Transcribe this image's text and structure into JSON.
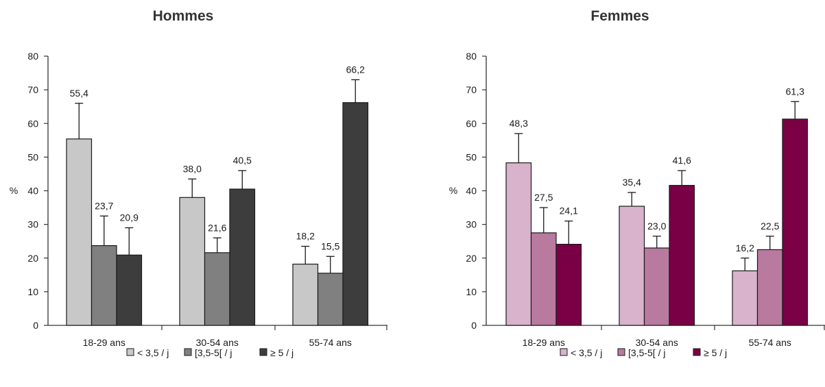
{
  "chart_data": [
    {
      "type": "bar",
      "title": "Hommes",
      "ylabel": "%",
      "ylim": [
        0,
        80
      ],
      "yticks": [
        "0",
        "10",
        "20",
        "30",
        "40",
        "50",
        "60",
        "70",
        "80"
      ],
      "categories": [
        "18-29 ans",
        "30-54 ans",
        "55-74 ans"
      ],
      "series": [
        {
          "name": "< 3,5 / j",
          "color": "#c8c8c8",
          "values": [
            55.4,
            38.0,
            18.2
          ],
          "labels": [
            "55,4",
            "38,0",
            "18,2"
          ],
          "err_upper": [
            66.0,
            43.5,
            23.5
          ]
        },
        {
          "name": "[3,5-5[ / j",
          "color": "#808080",
          "values": [
            23.7,
            21.6,
            15.5
          ],
          "labels": [
            "23,7",
            "21,6",
            "15,5"
          ],
          "err_upper": [
            32.5,
            26.0,
            20.5
          ]
        },
        {
          "name": "≥ 5 / j",
          "color": "#3d3d3d",
          "values": [
            20.9,
            40.5,
            66.2
          ],
          "labels": [
            "20,9",
            "40,5",
            "66,2"
          ],
          "err_upper": [
            29.0,
            46.0,
            73.0
          ]
        }
      ],
      "legend_position": "bottom",
      "grid": false
    },
    {
      "type": "bar",
      "title": "Femmes",
      "ylabel": "%",
      "ylim": [
        0,
        80
      ],
      "yticks": [
        "0",
        "10",
        "20",
        "30",
        "40",
        "50",
        "60",
        "70",
        "80"
      ],
      "categories": [
        "18-29 ans",
        "30-54 ans",
        "55-74 ans"
      ],
      "series": [
        {
          "name": "< 3,5 / j",
          "color": "#d8b3cb",
          "values": [
            48.3,
            35.4,
            16.2
          ],
          "labels": [
            "48,3",
            "35,4",
            "16,2"
          ],
          "err_upper": [
            57.0,
            39.5,
            20.0
          ]
        },
        {
          "name": "[3,5-5[ / j",
          "color": "#b87a9e",
          "values": [
            27.5,
            23.0,
            22.5
          ],
          "labels": [
            "27,5",
            "23,0",
            "22,5"
          ],
          "err_upper": [
            35.0,
            26.5,
            26.5
          ]
        },
        {
          "name": "≥ 5 / j",
          "color": "#7a0045",
          "values": [
            24.1,
            41.6,
            61.3
          ],
          "labels": [
            "24,1",
            "41,6",
            "61,3"
          ],
          "err_upper": [
            31.0,
            46.0,
            66.5
          ]
        }
      ],
      "legend_position": "bottom",
      "grid": false
    }
  ]
}
